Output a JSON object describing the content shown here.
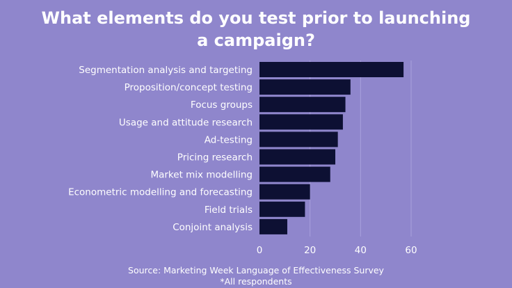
{
  "title": [
    "What elements do you test prior to launching",
    "a campaign?"
  ],
  "source": "Source: Marketing Week Language of Effectiveness Survey",
  "note": "*All respondents",
  "colors": {
    "background": "#8f86cc",
    "bar": "#0d1033",
    "text": "#ffffff"
  },
  "chart_data": {
    "type": "bar",
    "orientation": "horizontal",
    "title": "What elements do you test prior to launching a campaign?",
    "categories": [
      "Segmentation analysis and targeting",
      "Proposition/concept testing",
      "Focus groups",
      "Usage and attitude research",
      "Ad-testing",
      "Pricing research",
      "Market mix modelling",
      "Econometric modelling and forecasting",
      "Field trials",
      "Conjoint analysis"
    ],
    "values": [
      57,
      36,
      34,
      33,
      31,
      30,
      28,
      20,
      18,
      11
    ],
    "xlim": [
      0,
      60
    ],
    "xticks": [
      0,
      20,
      40,
      60
    ],
    "grid": true
  }
}
